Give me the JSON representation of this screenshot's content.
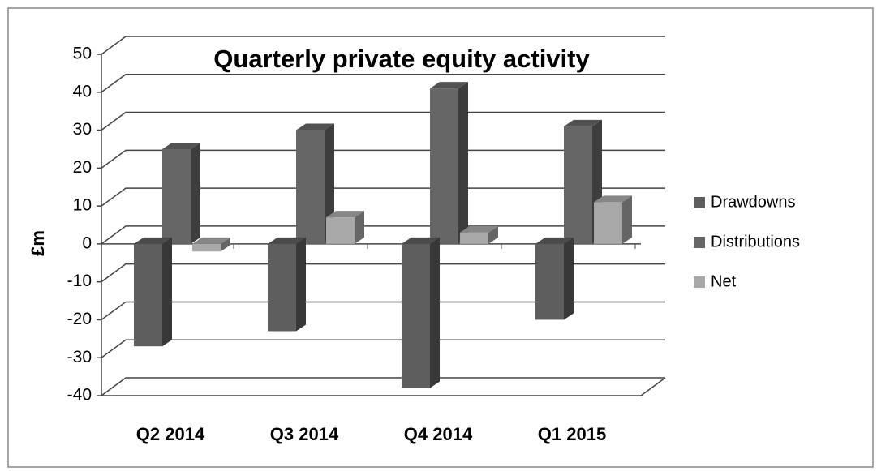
{
  "chart_data": {
    "type": "bar3d",
    "title": "Quarterly private equity activity",
    "y_label": "£m",
    "categories": [
      "Q2 2014",
      "Q3 2014",
      "Q4 2014",
      "Q1 2015"
    ],
    "series": [
      {
        "name": "Drawdowns",
        "color": "#5e5e5e",
        "values": [
          -27,
          -23,
          -38,
          -20
        ]
      },
      {
        "name": "Distributions",
        "color": "#666666",
        "values": [
          25,
          30,
          41,
          31
        ]
      },
      {
        "name": "Net",
        "color": "#a8a8a8",
        "values": [
          -2,
          7,
          3,
          11
        ]
      }
    ],
    "ylim": [
      -40,
      50
    ],
    "yticks": [
      -40,
      -30,
      -20,
      -10,
      0,
      10,
      20,
      30,
      40,
      50
    ],
    "grid": true,
    "legend": "right"
  }
}
